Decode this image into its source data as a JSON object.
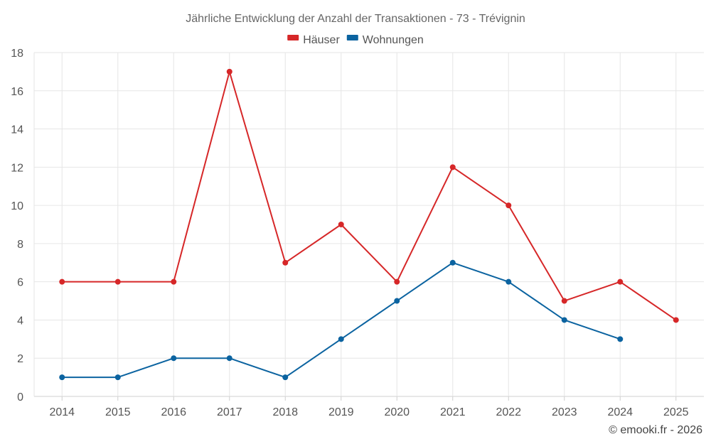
{
  "chart_data": {
    "type": "line",
    "title": "Jährliche Entwicklung der Anzahl der Transaktionen - 73 - Trévignin",
    "categories": [
      "2014",
      "2015",
      "2016",
      "2017",
      "2018",
      "2019",
      "2020",
      "2021",
      "2022",
      "2023",
      "2024",
      "2025"
    ],
    "series": [
      {
        "name": "Häuser",
        "color": "#d62728",
        "values": [
          6,
          6,
          6,
          17,
          7,
          9,
          6,
          12,
          10,
          5,
          6,
          4
        ]
      },
      {
        "name": "Wohnungen",
        "color": "#0b63a0",
        "values": [
          1,
          1,
          2,
          2,
          1,
          3,
          5,
          7,
          6,
          4,
          3,
          null
        ]
      }
    ],
    "ylim": [
      0,
      18
    ],
    "yticks": [
      0,
      2,
      4,
      6,
      8,
      10,
      12,
      14,
      16,
      18
    ],
    "grid": true,
    "legend_position": "top-center"
  },
  "credit": "© emooki.fr - 2026"
}
